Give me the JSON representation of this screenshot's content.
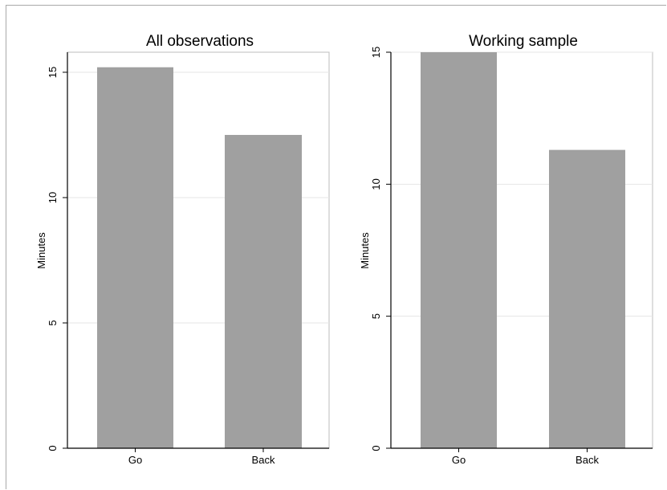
{
  "chart_data": [
    {
      "type": "bar",
      "title": "All observations",
      "xlabel": "",
      "ylabel": "Minutes",
      "categories": [
        "Go",
        "Back"
      ],
      "values": [
        15.2,
        12.5
      ],
      "ylim": [
        0,
        15.8
      ],
      "yticks": [
        0,
        5,
        10,
        15
      ],
      "grid": true,
      "bar_color": "#a0a0a0",
      "grid_color": "#e6e6e6"
    },
    {
      "type": "bar",
      "title": "Working sample",
      "xlabel": "",
      "ylabel": "Minutes",
      "categories": [
        "Go",
        "Back"
      ],
      "values": [
        15.0,
        11.3
      ],
      "ylim": [
        0,
        15.0
      ],
      "yticks": [
        0,
        5,
        10,
        15
      ],
      "grid": true,
      "bar_color": "#a0a0a0",
      "grid_color": "#e6e6e6"
    }
  ]
}
